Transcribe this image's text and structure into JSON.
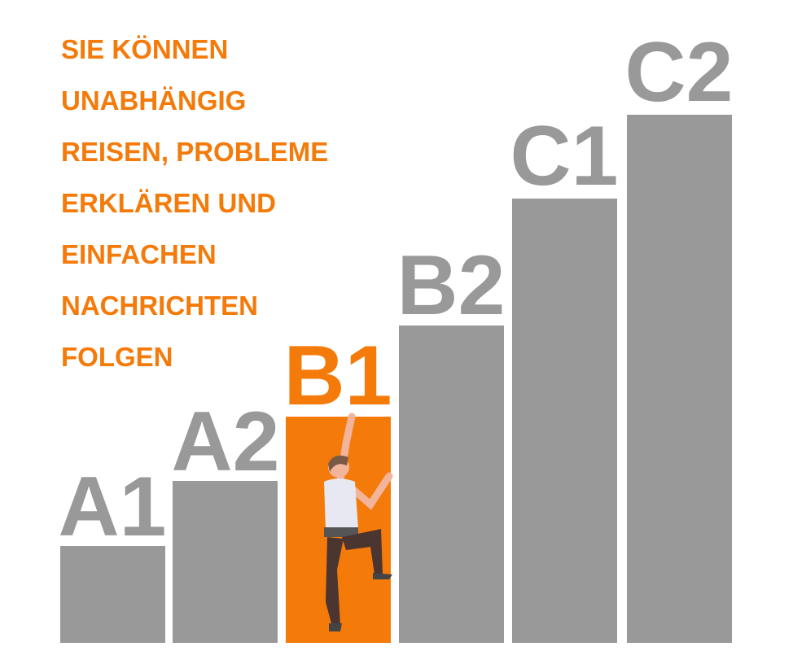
{
  "text": {
    "lines": [
      "SIE KÖNNEN",
      "UNABHÄNGIG",
      "REISEN, PROBLEME",
      "ERKLÄREN UND",
      "EINFACHEN",
      "NACHRICHTEN",
      "FOLGEN"
    ]
  },
  "levels": [
    {
      "label": "A1"
    },
    {
      "label": "A2"
    },
    {
      "label": "B1"
    },
    {
      "label": "B2"
    },
    {
      "label": "C1"
    },
    {
      "label": "C2"
    }
  ]
}
